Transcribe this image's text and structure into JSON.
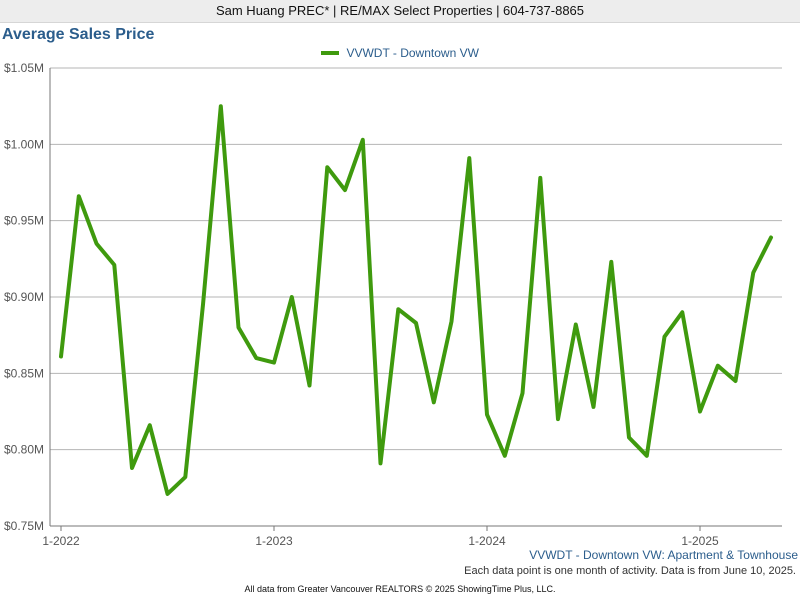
{
  "header": {
    "agent_line": "Sam Huang PREC* | RE/MAX Select Properties | 604-737-8865"
  },
  "footer": {
    "source": "VVWDT - Downtown VW: Apartment & Townhouse",
    "note": "Each data point is one month of activity. Data is from June 10, 2025.",
    "credit": "All data from Greater Vancouver REALTORS © 2025 ShowingTime Plus, LLC."
  },
  "colors": {
    "series": "#3f9a0e",
    "title": "#2b5d8c",
    "grid": "#b5b5b5"
  },
  "chart_data": {
    "type": "line",
    "title": "Average Sales Price",
    "xlabel": "",
    "ylabel": "",
    "ylim": [
      750000,
      1050000
    ],
    "y_ticks": [
      {
        "value": 750000,
        "label": "$0.75M"
      },
      {
        "value": 800000,
        "label": "$0.80M"
      },
      {
        "value": 850000,
        "label": "$0.85M"
      },
      {
        "value": 900000,
        "label": "$0.90M"
      },
      {
        "value": 950000,
        "label": "$0.95M"
      },
      {
        "value": 1000000,
        "label": "$1.00M"
      },
      {
        "value": 1050000,
        "label": "$1.05M"
      }
    ],
    "x_ticks": [
      {
        "index": 0,
        "label": "1-2022"
      },
      {
        "index": 12,
        "label": "1-2023"
      },
      {
        "index": 24,
        "label": "1-2024"
      },
      {
        "index": 36,
        "label": "1-2025"
      }
    ],
    "grid": true,
    "legend": "top-center",
    "x": [
      "2022-01",
      "2022-02",
      "2022-03",
      "2022-04",
      "2022-05",
      "2022-06",
      "2022-07",
      "2022-08",
      "2022-09",
      "2022-10",
      "2022-11",
      "2022-12",
      "2023-01",
      "2023-02",
      "2023-03",
      "2023-04",
      "2023-05",
      "2023-06",
      "2023-07",
      "2023-08",
      "2023-09",
      "2023-10",
      "2023-11",
      "2023-12",
      "2024-01",
      "2024-02",
      "2024-03",
      "2024-04",
      "2024-05",
      "2024-06",
      "2024-07",
      "2024-08",
      "2024-09",
      "2024-10",
      "2024-11",
      "2024-12",
      "2025-01",
      "2025-02",
      "2025-03",
      "2025-04",
      "2025-05"
    ],
    "series": [
      {
        "name": "VVWDT - Downtown VW",
        "values": [
          861000,
          966000,
          935000,
          921000,
          788000,
          816000,
          771000,
          782000,
          895000,
          1025000,
          880000,
          860000,
          857000,
          900000,
          842000,
          985000,
          970000,
          1003000,
          791000,
          892000,
          883000,
          831000,
          884000,
          991000,
          823000,
          796000,
          837000,
          978000,
          820000,
          882000,
          828000,
          923000,
          808000,
          796000,
          874000,
          890000,
          825000,
          855000,
          845000,
          916000,
          939000
        ]
      }
    ]
  }
}
